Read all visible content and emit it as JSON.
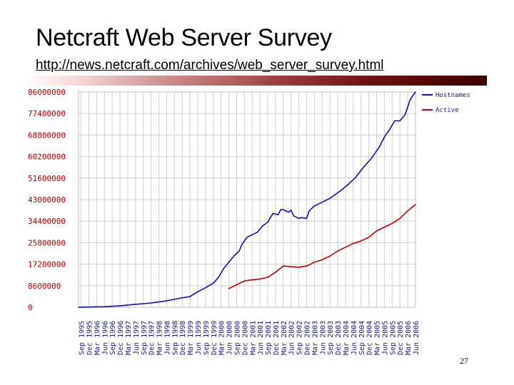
{
  "slide": {
    "title": "Netcraft Web Server Survey",
    "link": "http://news.netcraft.com/archives/web_server_survey.html",
    "page_number": "27"
  },
  "colors": {
    "hostnames": "#1010b8",
    "active": "#c80000",
    "grid": "#cfcfcf",
    "ytick": "#b00000",
    "xtick": "#1a1a8c"
  },
  "chart_data": {
    "type": "line",
    "ylim": [
      0,
      86000000
    ],
    "grid": true,
    "legend_position": "top-right",
    "y_ticks": [
      "86000000",
      "77400000",
      "68800000",
      "60200000",
      "51600000",
      "43000000",
      "34400000",
      "25800000",
      "17200000",
      "8600000",
      "0"
    ],
    "x_ticks": [
      "Sep 1995",
      "Dec 1995",
      "Mar 1996",
      "Jun 1996",
      "Sep 1996",
      "Dec 1996",
      "Mar 1997",
      "Jun 1997",
      "Sep 1997",
      "Dec 1997",
      "Mar 1998",
      "Jun 1998",
      "Sep 1998",
      "Dec 1998",
      "Mar 1999",
      "Jun 1999",
      "Sep 1999",
      "Dec 1999",
      "Mar 2000",
      "Jun 2000",
      "Sep 2000",
      "Dec 2000",
      "Mar 2001",
      "Jun 2001",
      "Sep 2001",
      "Dec 2001",
      "Mar 2002",
      "Jun 2002",
      "Sep 2002",
      "Dec 2002",
      "Mar 2003",
      "Jun 2003",
      "Sep 2003",
      "Dec 2003",
      "Mar 2004",
      "Jun 2004",
      "Sep 2004",
      "Dec 2004",
      "Mar 2005",
      "Jun 2005",
      "Sep 2005",
      "Dec 2005",
      "Mar 2006",
      "Jun 2006"
    ],
    "series": [
      {
        "name": "Hostnames",
        "color": "#1010b8",
        "values": [
          [
            "Aug 1995",
            20000
          ],
          [
            "Jun 1996",
            230000
          ],
          [
            "Dec 1996",
            600000
          ],
          [
            "Jun 1997",
            1200000
          ],
          [
            "Dec 1997",
            1700000
          ],
          [
            "Jun 1998",
            2600000
          ],
          [
            "Dec 1998",
            3800000
          ],
          [
            "Mar 1999",
            4300000
          ],
          [
            "Jun 1999",
            6200000
          ],
          [
            "Sep 1999",
            7800000
          ],
          [
            "Dec 1999",
            9600000
          ],
          [
            "Feb 2000",
            12000000
          ],
          [
            "Apr 2000",
            15500000
          ],
          [
            "Jun 2000",
            18000000
          ],
          [
            "Aug 2000",
            20500000
          ],
          [
            "Oct 2000",
            22500000
          ],
          [
            "Nov 2000",
            25000000
          ],
          [
            "Jan 2001",
            28000000
          ],
          [
            "Mar 2001",
            29000000
          ],
          [
            "May 2001",
            30000000
          ],
          [
            "Jul 2001",
            32500000
          ],
          [
            "Sep 2001",
            34000000
          ],
          [
            "Nov 2001",
            37500000
          ],
          [
            "Jan 2002",
            37000000
          ],
          [
            "Feb 2002",
            39000000
          ],
          [
            "Mar 2002",
            39000000
          ],
          [
            "May 2002",
            38000000
          ],
          [
            "Jun 2002",
            38800000
          ],
          [
            "Jul 2002",
            36500000
          ],
          [
            "Sep 2002",
            35500000
          ],
          [
            "Oct 2002",
            35800000
          ],
          [
            "Dec 2002",
            35500000
          ],
          [
            "Jan 2003",
            38500000
          ],
          [
            "Mar 2003",
            40500000
          ],
          [
            "May 2003",
            41500000
          ],
          [
            "Jul 2003",
            42500000
          ],
          [
            "Sep 2003",
            43500000
          ],
          [
            "Nov 2003",
            45000000
          ],
          [
            "Jan 2004",
            46500000
          ],
          [
            "Apr 2004",
            49000000
          ],
          [
            "Jul 2004",
            52000000
          ],
          [
            "Oct 2004",
            56000000
          ],
          [
            "Jan 2005",
            59500000
          ],
          [
            "Apr 2005",
            64000000
          ],
          [
            "Jun 2005",
            68000000
          ],
          [
            "Aug 2005",
            71000000
          ],
          [
            "Oct 2005",
            74500000
          ],
          [
            "Dec 2005",
            74500000
          ],
          [
            "Feb 2006",
            77000000
          ],
          [
            "Apr 2006",
            83000000
          ],
          [
            "Jun 2006",
            86000000
          ]
        ]
      },
      {
        "name": "Active",
        "color": "#c80000",
        "values": [
          [
            "Jun 2000",
            7500000
          ],
          [
            "Sep 2000",
            9000000
          ],
          [
            "Dec 2000",
            10500000
          ],
          [
            "Mar 2001",
            11000000
          ],
          [
            "Jun 2001",
            11300000
          ],
          [
            "Sep 2001",
            12000000
          ],
          [
            "Dec 2001",
            14000000
          ],
          [
            "Mar 2002",
            16500000
          ],
          [
            "Jun 2002",
            16200000
          ],
          [
            "Sep 2002",
            16000000
          ],
          [
            "Dec 2002",
            16500000
          ],
          [
            "Mar 2003",
            18000000
          ],
          [
            "Jun 2003",
            19000000
          ],
          [
            "Sep 2003",
            20500000
          ],
          [
            "Dec 2003",
            22500000
          ],
          [
            "Mar 2004",
            24000000
          ],
          [
            "Jun 2004",
            25500000
          ],
          [
            "Sep 2004",
            26500000
          ],
          [
            "Dec 2004",
            28000000
          ],
          [
            "Mar 2005",
            30500000
          ],
          [
            "Jun 2005",
            32000000
          ],
          [
            "Sep 2005",
            33500000
          ],
          [
            "Dec 2005",
            35500000
          ],
          [
            "Mar 2006",
            38500000
          ],
          [
            "Jun 2006",
            41000000
          ]
        ]
      }
    ]
  }
}
